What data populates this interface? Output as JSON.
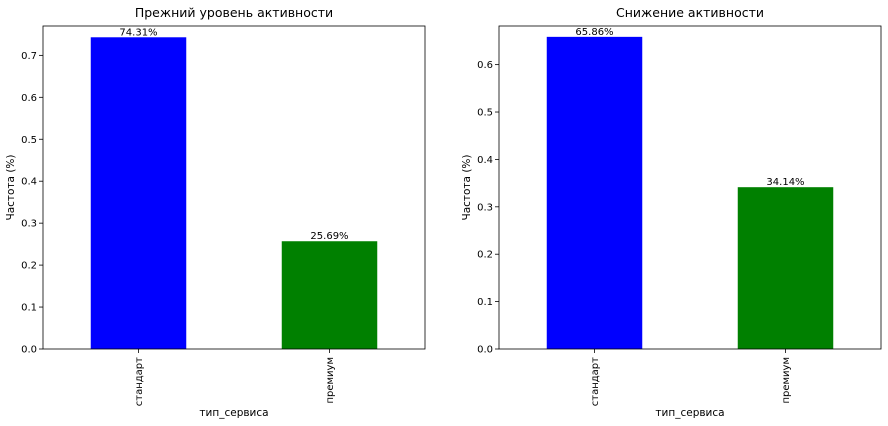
{
  "chart_data": [
    {
      "type": "bar",
      "title": "Прежний уровень активности",
      "xlabel": "тип_сервиса",
      "ylabel": "Частота (%)",
      "categories": [
        "стандарт",
        "премиум"
      ],
      "values": [
        0.7431,
        0.2569
      ],
      "data_labels": [
        "74.31%",
        "25.69%"
      ],
      "colors": [
        "#0000ff",
        "#008000"
      ],
      "ylim": [
        0,
        0.77
      ],
      "yticks": [
        0.0,
        0.1,
        0.2,
        0.3,
        0.4,
        0.5,
        0.6,
        0.7
      ],
      "ytick_labels": [
        "0.0",
        "0.1",
        "0.2",
        "0.3",
        "0.4",
        "0.5",
        "0.6",
        "0.7"
      ],
      "grid": false,
      "legend": "none"
    },
    {
      "type": "bar",
      "title": "Снижение активности",
      "xlabel": "тип_сервиса",
      "ylabel": "Частота (%)",
      "categories": [
        "стандарт",
        "премиум"
      ],
      "values": [
        0.6586,
        0.3414
      ],
      "data_labels": [
        "65.86%",
        "34.14%"
      ],
      "colors": [
        "#0000ff",
        "#008000"
      ],
      "ylim": [
        0,
        0.6815
      ],
      "yticks": [
        0.0,
        0.1,
        0.2,
        0.3,
        0.4,
        0.5,
        0.6
      ],
      "ytick_labels": [
        "0.0",
        "0.1",
        "0.2",
        "0.3",
        "0.4",
        "0.5",
        "0.6"
      ],
      "grid": false,
      "legend": "none"
    }
  ]
}
